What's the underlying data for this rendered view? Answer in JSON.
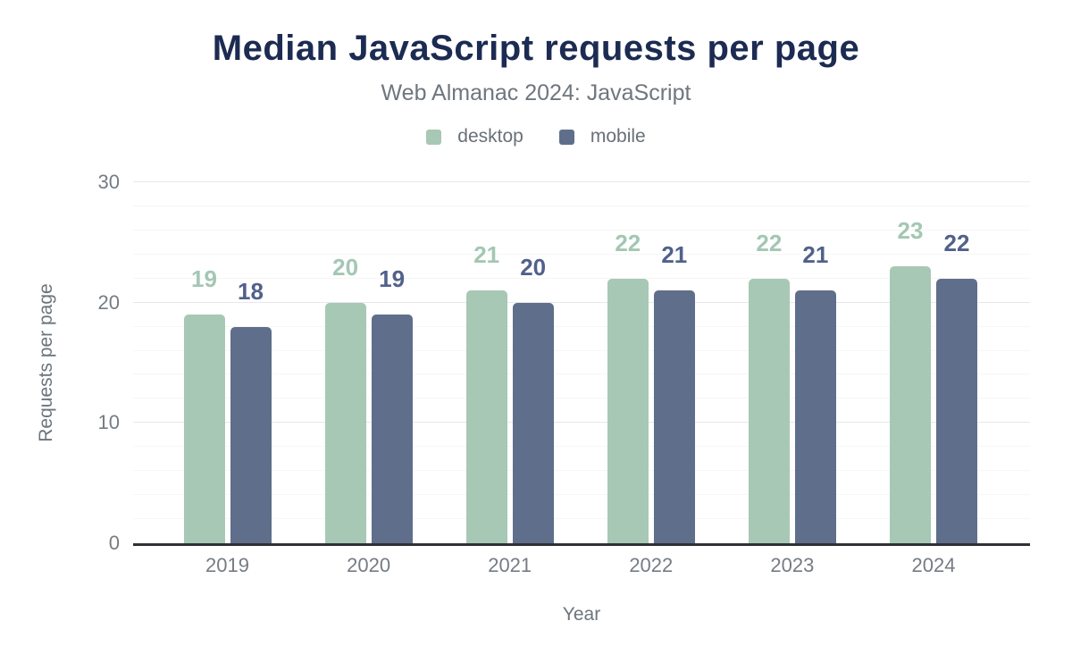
{
  "chart_data": {
    "type": "bar",
    "title": "Median JavaScript requests per page",
    "subtitle": "Web Almanac 2024: JavaScript",
    "xlabel": "Year",
    "ylabel": "Requests per page",
    "categories": [
      "2019",
      "2020",
      "2021",
      "2022",
      "2023",
      "2024"
    ],
    "series": [
      {
        "name": "desktop",
        "color": "#a7c8b5",
        "label_color": "#a3c7b3",
        "values": [
          19,
          20,
          21,
          22,
          22,
          23
        ]
      },
      {
        "name": "mobile",
        "color": "#5f6e8b",
        "label_color": "#51618a",
        "values": [
          18,
          19,
          20,
          21,
          21,
          22
        ]
      }
    ],
    "ylim": [
      0,
      30
    ],
    "yticks": [
      0,
      10,
      20,
      30
    ],
    "minor_grid_step": 2,
    "grid": true,
    "legend_position": "top",
    "value_labels": true
  }
}
